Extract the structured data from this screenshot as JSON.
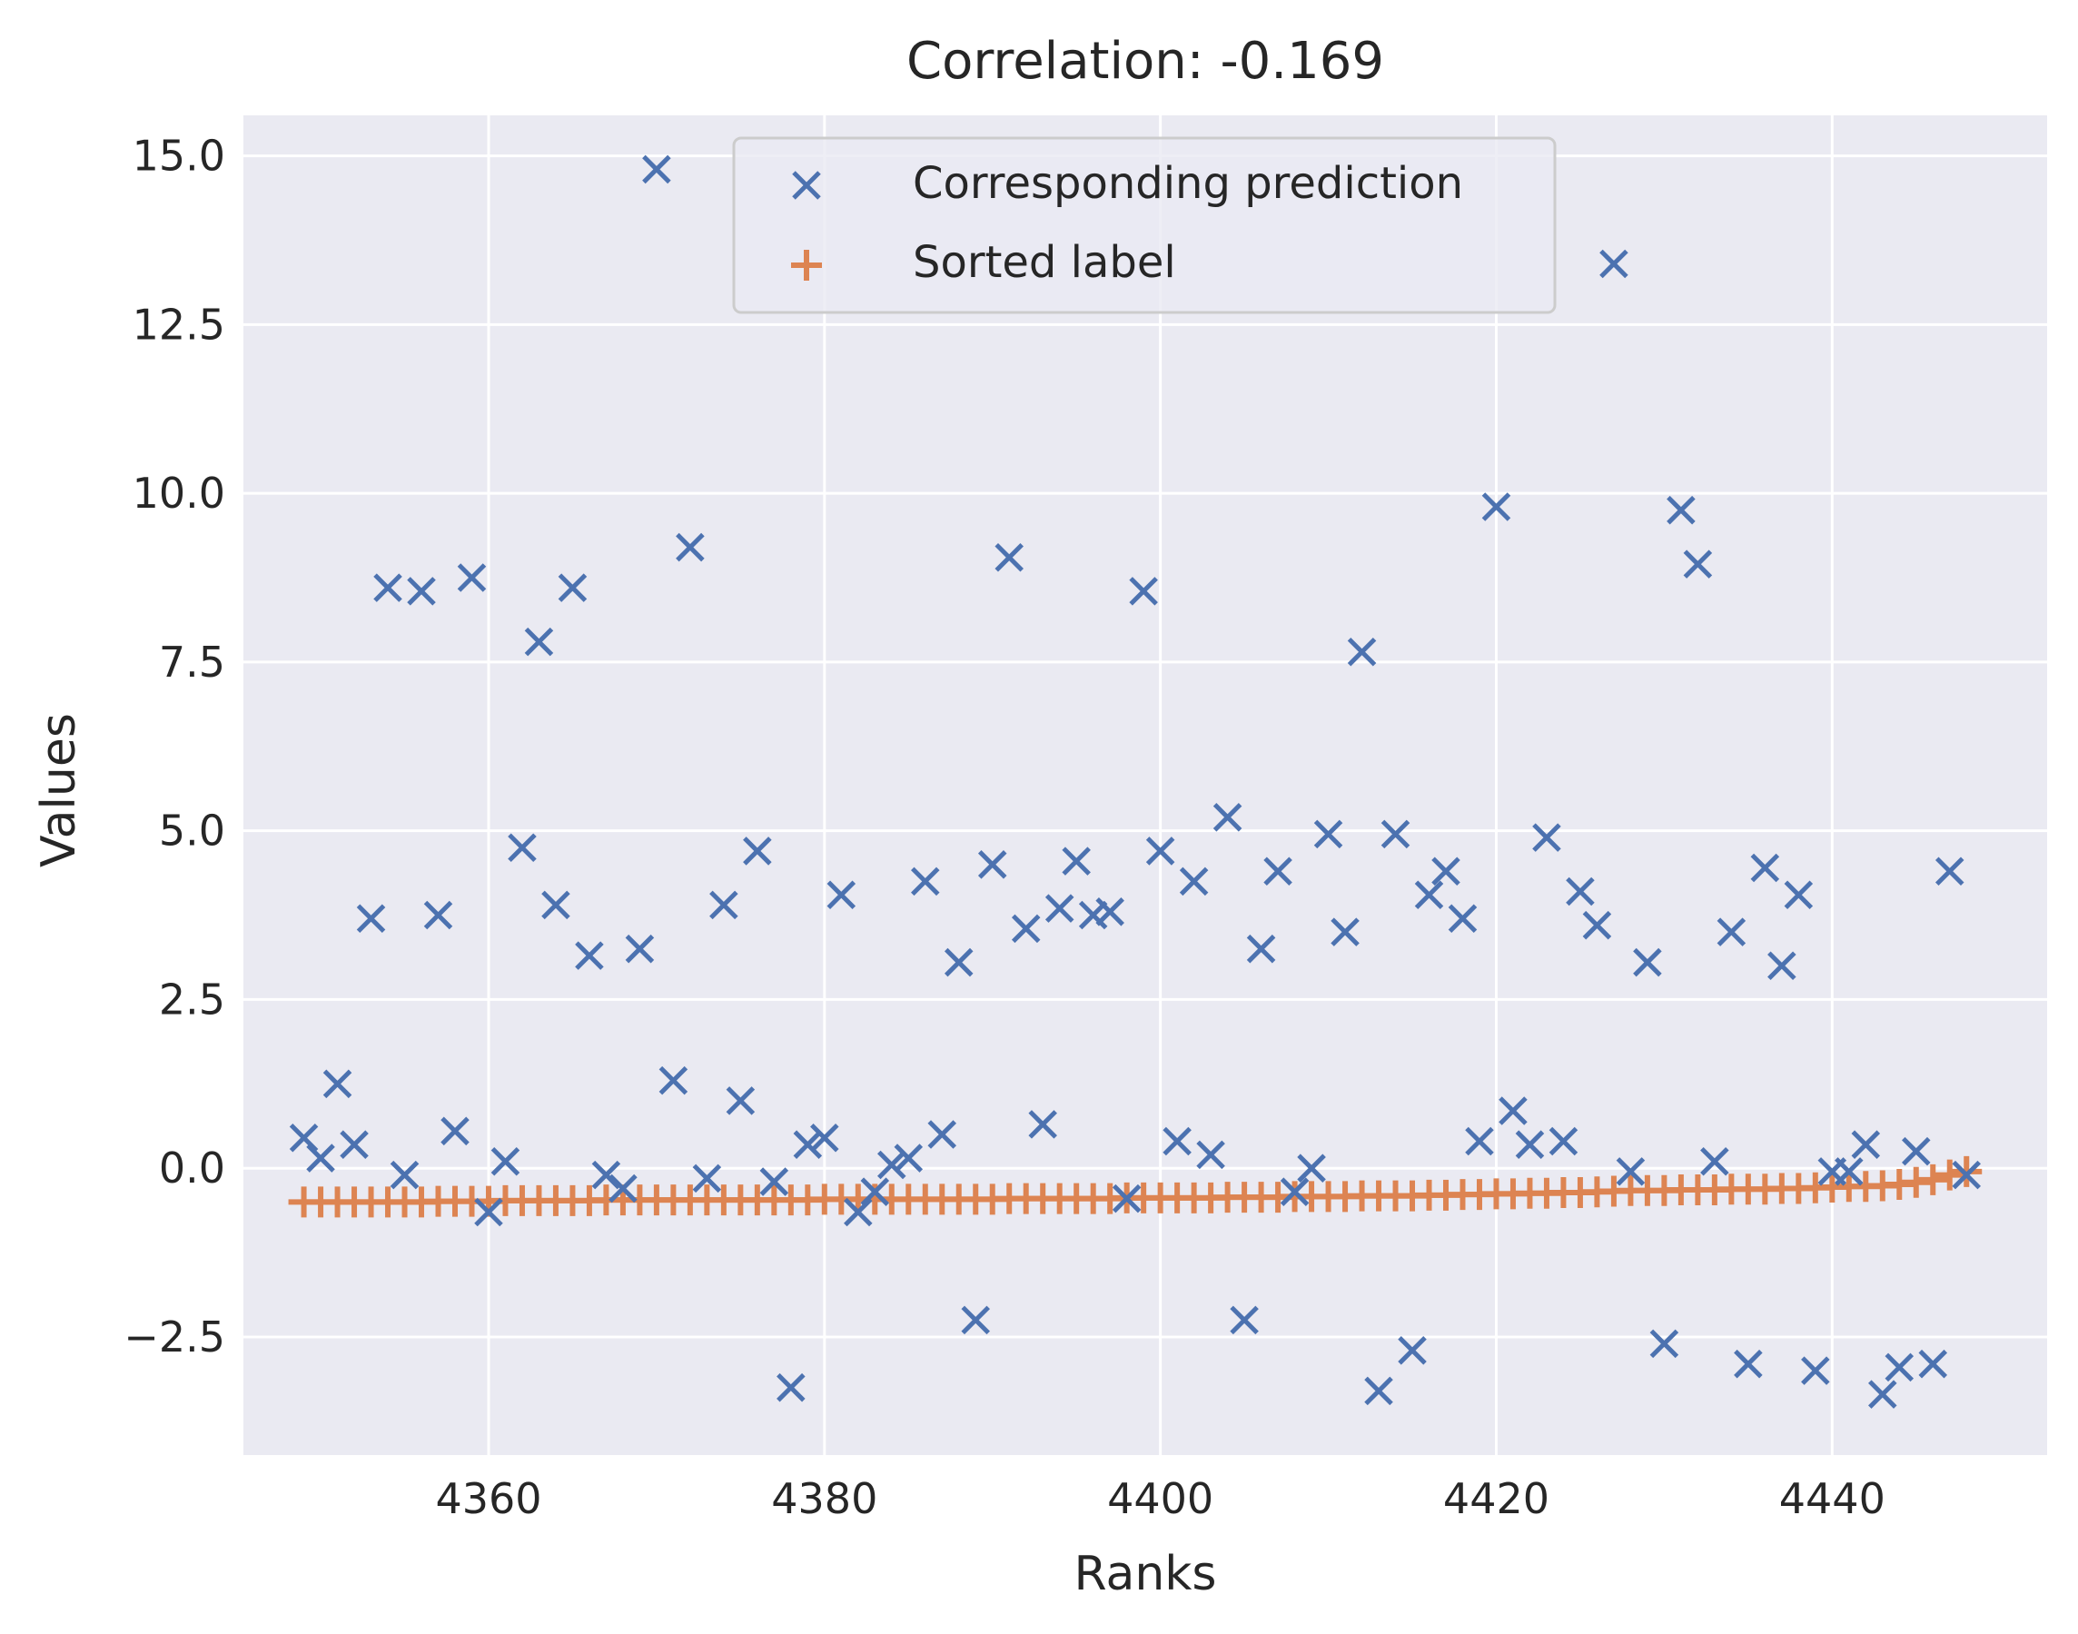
{
  "chart_data": {
    "type": "scatter",
    "title": "Correlation: -0.169",
    "xlabel": "Ranks",
    "ylabel": "Values",
    "xlim": [
      4345.4,
      4452.8
    ],
    "ylim": [
      -4.25,
      15.6
    ],
    "xticks": [
      4360,
      4380,
      4400,
      4420,
      4440
    ],
    "xtick_labels": [
      "4360",
      "4380",
      "4400",
      "4420",
      "4440"
    ],
    "yticks": [
      -2.5,
      0.0,
      2.5,
      5.0,
      7.5,
      10.0,
      12.5,
      15.0
    ],
    "ytick_labels": [
      "−2.5",
      "0.0",
      "2.5",
      "5.0",
      "7.5",
      "10.0",
      "12.5",
      "15.0"
    ],
    "grid": true,
    "legend_position": "upper-center",
    "colors": {
      "background": "#eaeaf2",
      "grid": "#ffffff",
      "prediction": "#4c72b0",
      "label": "#dd8452"
    },
    "series": [
      {
        "name": "Corresponding prediction",
        "marker": "x",
        "x": [
          4349,
          4350,
          4351,
          4352,
          4353,
          4354,
          4355,
          4356,
          4357,
          4358,
          4359,
          4360,
          4361,
          4362,
          4363,
          4364,
          4365,
          4366,
          4367,
          4368,
          4369,
          4370,
          4371,
          4372,
          4373,
          4374,
          4375,
          4376,
          4377,
          4378,
          4379,
          4380,
          4381,
          4382,
          4383,
          4384,
          4385,
          4386,
          4387,
          4388,
          4389,
          4390,
          4391,
          4392,
          4393,
          4394,
          4395,
          4396,
          4397,
          4398,
          4399,
          4400,
          4401,
          4402,
          4403,
          4404,
          4405,
          4406,
          4407,
          4408,
          4409,
          4410,
          4411,
          4412,
          4413,
          4414,
          4415,
          4416,
          4417,
          4418,
          4419,
          4420,
          4421,
          4422,
          4423,
          4424,
          4425,
          4426,
          4427,
          4428,
          4429,
          4430,
          4431,
          4432,
          4433,
          4434,
          4435,
          4436,
          4437,
          4438,
          4439,
          4440,
          4441,
          4442,
          4443,
          4444,
          4445,
          4446,
          4447,
          4448
        ],
        "y": [
          0.45,
          0.15,
          1.25,
          0.35,
          3.7,
          8.6,
          -0.1,
          8.55,
          3.75,
          0.55,
          8.75,
          -0.65,
          0.1,
          4.75,
          7.8,
          3.9,
          8.6,
          3.15,
          -0.1,
          -0.3,
          3.25,
          14.8,
          1.3,
          9.2,
          -0.15,
          3.9,
          1.0,
          4.7,
          -0.2,
          -3.25,
          0.35,
          0.45,
          4.05,
          -0.65,
          -0.35,
          0.05,
          0.15,
          4.25,
          0.5,
          3.05,
          -2.25,
          4.5,
          9.05,
          3.55,
          0.65,
          3.85,
          4.55,
          3.75,
          3.8,
          -0.45,
          8.55,
          4.7,
          0.4,
          4.25,
          0.2,
          5.2,
          -2.25,
          3.25,
          4.4,
          -0.35,
          0.0,
          4.95,
          3.5,
          7.65,
          -3.3,
          4.95,
          -2.7,
          4.05,
          4.4,
          3.7,
          0.4,
          9.8,
          0.85,
          0.35,
          4.9,
          0.4,
          4.1,
          3.6,
          13.4,
          -0.05,
          3.05,
          -2.6,
          9.75,
          8.95,
          0.1,
          3.5,
          -2.9,
          4.45,
          3.0,
          4.05,
          -3.0,
          -0.05,
          -0.05,
          0.35,
          -3.35,
          -2.95,
          0.25,
          -2.9,
          4.4,
          -0.1
        ]
      },
      {
        "name": "Sorted label",
        "marker": "+",
        "x": [
          4349,
          4350,
          4351,
          4352,
          4353,
          4354,
          4355,
          4356,
          4357,
          4358,
          4359,
          4360,
          4361,
          4362,
          4363,
          4364,
          4365,
          4366,
          4367,
          4368,
          4369,
          4370,
          4371,
          4372,
          4373,
          4374,
          4375,
          4376,
          4377,
          4378,
          4379,
          4380,
          4381,
          4382,
          4383,
          4384,
          4385,
          4386,
          4387,
          4388,
          4389,
          4390,
          4391,
          4392,
          4393,
          4394,
          4395,
          4396,
          4397,
          4398,
          4399,
          4400,
          4401,
          4402,
          4403,
          4404,
          4405,
          4406,
          4407,
          4408,
          4409,
          4410,
          4411,
          4412,
          4413,
          4414,
          4415,
          4416,
          4417,
          4418,
          4419,
          4420,
          4421,
          4422,
          4423,
          4424,
          4425,
          4426,
          4427,
          4428,
          4429,
          4430,
          4431,
          4432,
          4433,
          4434,
          4435,
          4436,
          4437,
          4438,
          4439,
          4440,
          4441,
          4442,
          4443,
          4444,
          4445,
          4446,
          4447,
          4448
        ],
        "y": [
          -0.5,
          -0.5,
          -0.5,
          -0.5,
          -0.5,
          -0.5,
          -0.5,
          -0.5,
          -0.49,
          -0.49,
          -0.49,
          -0.49,
          -0.48,
          -0.48,
          -0.48,
          -0.48,
          -0.48,
          -0.48,
          -0.47,
          -0.47,
          -0.47,
          -0.47,
          -0.47,
          -0.47,
          -0.47,
          -0.47,
          -0.47,
          -0.47,
          -0.47,
          -0.47,
          -0.47,
          -0.46,
          -0.46,
          -0.46,
          -0.46,
          -0.46,
          -0.46,
          -0.46,
          -0.46,
          -0.46,
          -0.46,
          -0.46,
          -0.45,
          -0.45,
          -0.45,
          -0.45,
          -0.45,
          -0.45,
          -0.45,
          -0.44,
          -0.44,
          -0.44,
          -0.44,
          -0.44,
          -0.44,
          -0.43,
          -0.43,
          -0.43,
          -0.43,
          -0.42,
          -0.42,
          -0.42,
          -0.42,
          -0.41,
          -0.41,
          -0.41,
          -0.41,
          -0.4,
          -0.4,
          -0.39,
          -0.39,
          -0.38,
          -0.38,
          -0.37,
          -0.37,
          -0.36,
          -0.36,
          -0.35,
          -0.34,
          -0.33,
          -0.33,
          -0.33,
          -0.32,
          -0.32,
          -0.32,
          -0.31,
          -0.31,
          -0.31,
          -0.3,
          -0.3,
          -0.29,
          -0.28,
          -0.27,
          -0.27,
          -0.26,
          -0.24,
          -0.21,
          -0.17,
          -0.1,
          -0.05
        ]
      }
    ]
  }
}
